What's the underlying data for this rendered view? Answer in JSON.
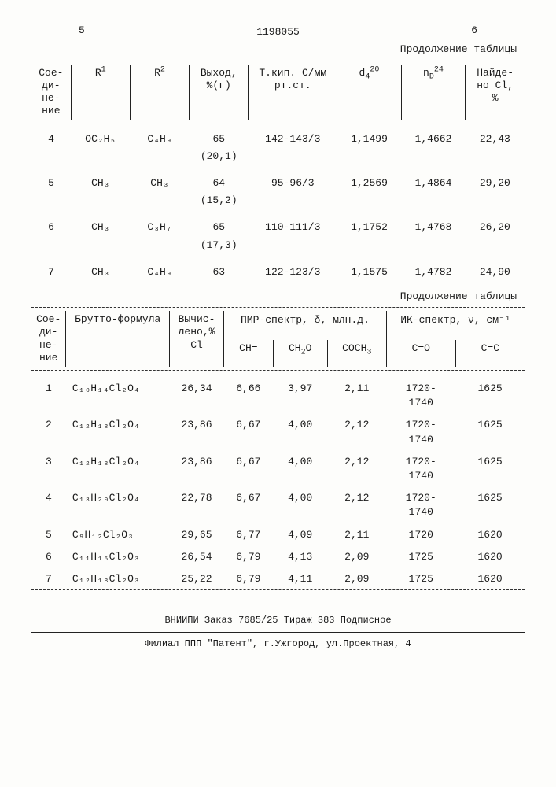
{
  "page": {
    "colLeft": "5",
    "colRight": "6",
    "docNumber": "1198055",
    "tableContinuation": "Продолжение таблицы"
  },
  "table1": {
    "headers": {
      "compound": "Сое-\nди-\nне-\nние",
      "r1": "R¹",
      "r2": "R²",
      "yield": "Выход,\n%(г)",
      "bp": "Т.кип. С/мм\nрт.ст.",
      "d": "d₄²⁰",
      "n": "n_D²⁴",
      "found": "Найде-\nно Cl,\n%"
    },
    "rows": [
      {
        "n": "4",
        "r1": "OC₂H₅",
        "r2": "C₄H₉",
        "yield": "65",
        "sub": "(20,1)",
        "bp": "142-143/3",
        "d": "1,1499",
        "nd": "1,4662",
        "cl": "22,43"
      },
      {
        "n": "5",
        "r1": "CH₃",
        "r2": "CH₃",
        "yield": "64",
        "sub": "(15,2)",
        "bp": "95-96/3",
        "d": "1,2569",
        "nd": "1,4864",
        "cl": "29,20"
      },
      {
        "n": "6",
        "r1": "CH₃",
        "r2": "C₃H₇",
        "yield": "65",
        "sub": "(17,3)",
        "bp": "110-111/3",
        "d": "1,1752",
        "nd": "1,4768",
        "cl": "26,20"
      },
      {
        "n": "7",
        "r1": "CH₃",
        "r2": "C₄H₉",
        "yield": "63",
        "sub": "",
        "bp": "122-123/3",
        "d": "1,1575",
        "nd": "1,4782",
        "cl": "24,90"
      }
    ]
  },
  "table2": {
    "headers": {
      "compound": "Сое-\nди-\nне-\nние",
      "brutto": "Брутто-формула",
      "calc": "Вычис-\nлено,%\nCl",
      "pmr": "ПМР-спектр, δ, млн.д.",
      "ir": "ИК-спектр, ν, см⁻¹",
      "ch": "CH=",
      "ch2o": "CH₂O",
      "coch3": "COCH₃",
      "co": "C=O",
      "cc": "C=C"
    },
    "rows": [
      {
        "n": "1",
        "bf": "C₁₀H₁₄Cl₂O₄",
        "calc": "26,34",
        "ch": "6,66",
        "ch2o": "3,97",
        "coch3": "2,11",
        "co": "1720-\n1740",
        "cc": "1625"
      },
      {
        "n": "2",
        "bf": "C₁₂H₁₈Cl₂O₄",
        "calc": "23,86",
        "ch": "6,67",
        "ch2o": "4,00",
        "coch3": "2,12",
        "co": "1720-\n1740",
        "cc": "1625"
      },
      {
        "n": "3",
        "bf": "C₁₂H₁₈Cl₂O₄",
        "calc": "23,86",
        "ch": "6,67",
        "ch2o": "4,00",
        "coch3": "2,12",
        "co": "1720-\n1740",
        "cc": "1625"
      },
      {
        "n": "4",
        "bf": "C₁₃H₂₀Cl₂O₄",
        "calc": "22,78",
        "ch": "6,67",
        "ch2o": "4,00",
        "coch3": "2,12",
        "co": "1720-\n1740",
        "cc": "1625"
      },
      {
        "n": "5",
        "bf": "C₉H₁₂Cl₂O₃",
        "calc": "29,65",
        "ch": "6,77",
        "ch2o": "4,09",
        "coch3": "2,11",
        "co": "1720",
        "cc": "1620"
      },
      {
        "n": "6",
        "bf": "C₁₁H₁₆Cl₂O₃",
        "calc": "26,54",
        "ch": "6,79",
        "ch2o": "4,13",
        "coch3": "2,09",
        "co": "1725",
        "cc": "1620"
      },
      {
        "n": "7",
        "bf": "C₁₂H₁₈Cl₂O₃",
        "calc": "25,22",
        "ch": "6,79",
        "ch2o": "4,11",
        "coch3": "2,09",
        "co": "1725",
        "cc": "1620"
      }
    ]
  },
  "footer": {
    "line1": "ВНИИПИ   Заказ 7685/25   Тираж 383   Подписное",
    "line2": "Филиал ППП \"Патент\", г.Ужгород, ул.Проектная, 4"
  }
}
